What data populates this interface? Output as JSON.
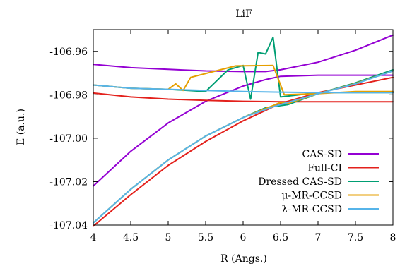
{
  "chart_data": {
    "type": "line",
    "title": "LiF",
    "xlabel": "R (Angs.)",
    "ylabel": "E (a.u.)",
    "xlim": [
      4,
      8
    ],
    "ylim": [
      -107.04,
      -106.95
    ],
    "xticks": [
      4,
      4.5,
      5,
      5.5,
      6,
      6.5,
      7,
      7.5,
      8
    ],
    "xtick_labels": [
      "4",
      "4.5",
      "5",
      "5.5",
      "6",
      "6.5",
      "7",
      "7.5",
      "8"
    ],
    "yticks": [
      -107.04,
      -107.02,
      -107.0,
      -106.98,
      -106.96
    ],
    "ytick_labels": [
      "-107.04",
      "-107.02",
      "-107.00",
      "-106.98",
      "-106.96"
    ],
    "grid": false,
    "legend_position": "bottom-right",
    "series": [
      {
        "name": "CAS-SD",
        "color": "#9400d3",
        "lines": [
          {
            "x": [
              4,
              4.5,
              5,
              5.5,
              6,
              6.3,
              6.5,
              7,
              7.5,
              8
            ],
            "y": [
              -106.966,
              -106.9675,
              -106.9683,
              -106.969,
              -106.9693,
              -106.9693,
              -106.9685,
              -106.965,
              -106.9595,
              -106.9525
            ]
          },
          {
            "x": [
              4,
              4.5,
              5,
              5.5,
              6,
              6.3,
              6.5,
              7,
              7.5,
              8
            ],
            "y": [
              -107.022,
              -107.006,
              -106.993,
              -106.983,
              -106.976,
              -106.973,
              -106.9715,
              -106.971,
              -106.971,
              -106.971
            ]
          }
        ]
      },
      {
        "name": "Full-CI",
        "color": "#e3211c",
        "lines": [
          {
            "x": [
              4,
              4.5,
              5,
              5.5,
              6,
              6.5,
              7,
              7.5,
              8
            ],
            "y": [
              -106.9792,
              -106.981,
              -106.982,
              -106.9826,
              -106.983,
              -106.9832,
              -106.9832,
              -106.9832,
              -106.9832
            ]
          },
          {
            "x": [
              4,
              4.5,
              5,
              5.5,
              6,
              6.5,
              7,
              7.5,
              8
            ],
            "y": [
              -107.0405,
              -107.026,
              -107.0125,
              -107.0015,
              -106.992,
              -106.984,
              -106.979,
              -106.9755,
              -106.972
            ]
          }
        ]
      },
      {
        "name": "Dressed CAS-SD",
        "color": "#009e73",
        "lines": [
          {
            "x": [
              4,
              4.5,
              5,
              5.5,
              5.8,
              6,
              6.1,
              6.2,
              6.3,
              6.4,
              6.5,
              7,
              7.5,
              8
            ],
            "y": [
              -106.9755,
              -106.977,
              -106.9775,
              -106.9785,
              -106.9685,
              -106.9665,
              -106.982,
              -106.9605,
              -106.9612,
              -106.9535,
              -106.981,
              -106.979,
              -106.979,
              -106.979
            ]
          },
          {
            "x": [
              4,
              4.5,
              5,
              5.5,
              6,
              6.3,
              6.6,
              7,
              7.5,
              8
            ],
            "y": [
              -107.039,
              -107.0235,
              -107.01,
              -106.999,
              -106.9905,
              -106.986,
              -106.9845,
              -106.9795,
              -106.9745,
              -106.9685
            ]
          }
        ]
      },
      {
        "name": "μ-MR-CCSD",
        "color": "#e69f00",
        "lines": [
          {
            "x": [
              4,
              4.5,
              5,
              5.1,
              5.2,
              5.3,
              5.9,
              6.4,
              6.55,
              7,
              7.5,
              8
            ],
            "y": [
              -106.9755,
              -106.977,
              -106.9775,
              -106.975,
              -106.978,
              -106.972,
              -106.9667,
              -106.9665,
              -106.98,
              -106.9795,
              -106.9785,
              -106.9785
            ]
          },
          {
            "x": [
              4,
              4.5,
              5,
              5.5,
              6,
              6.4,
              6.5,
              6.6,
              7,
              7.5,
              8
            ],
            "y": [
              -107.039,
              -107.0235,
              -107.01,
              -106.999,
              -106.9905,
              -106.985,
              -106.9835,
              -106.984,
              -106.9795,
              -106.9748,
              -106.969
            ]
          }
        ]
      },
      {
        "name": "λ-MR-CCSD",
        "color": "#56b4e9",
        "lines": [
          {
            "x": [
              4,
              4.5,
              5,
              5.5,
              6,
              6.5,
              7,
              7.5,
              8
            ],
            "y": [
              -106.9755,
              -106.977,
              -106.9775,
              -106.978,
              -106.9785,
              -106.9788,
              -106.979,
              -106.979,
              -106.979
            ]
          },
          {
            "x": [
              4,
              4.5,
              5,
              5.5,
              6,
              6.4,
              6.6,
              7,
              7.5,
              8
            ],
            "y": [
              -107.039,
              -107.0235,
              -107.01,
              -106.999,
              -106.9905,
              -106.9855,
              -106.9835,
              -106.9795,
              -106.975,
              -106.969
            ]
          }
        ]
      }
    ]
  }
}
